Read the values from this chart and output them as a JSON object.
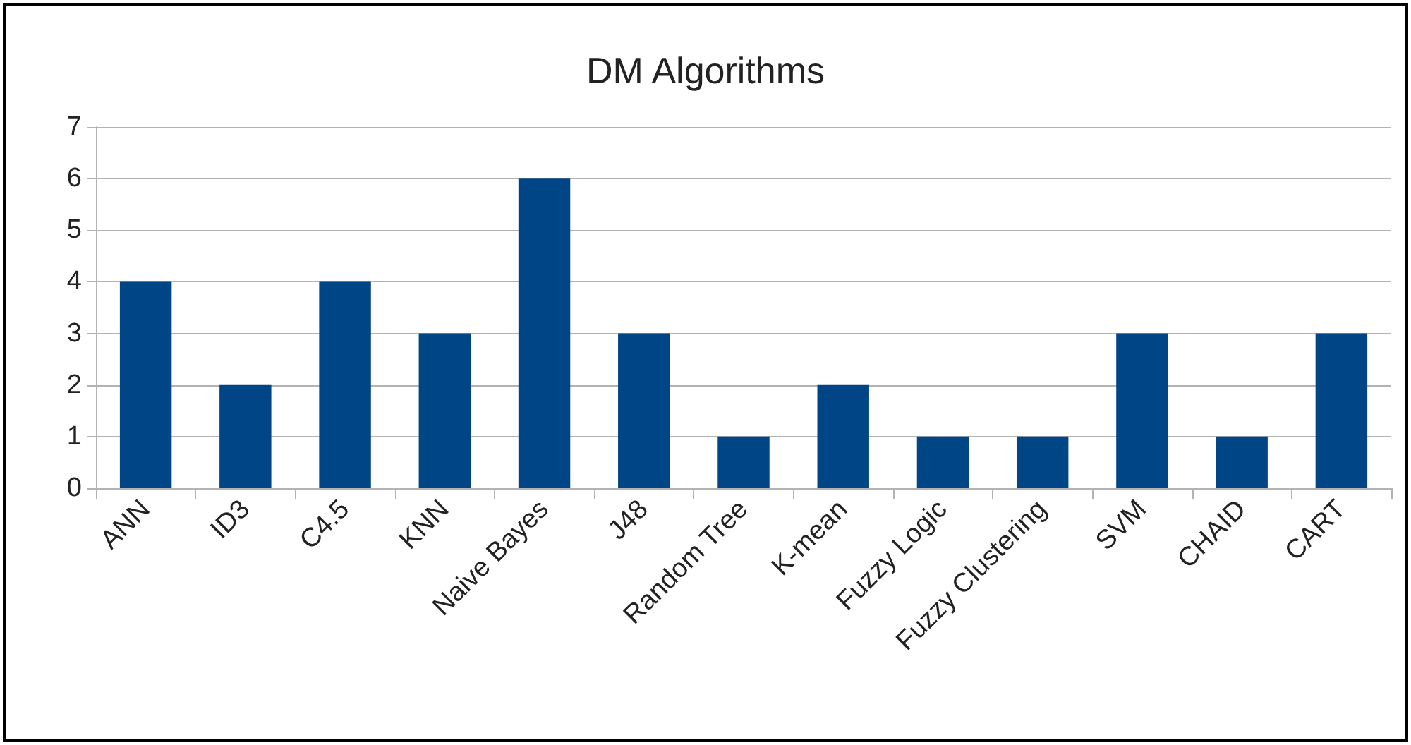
{
  "chart_data": {
    "type": "bar",
    "title": "DM Algorithms",
    "categories": [
      "ANN",
      "ID3",
      "C4.5",
      "KNN",
      "Naive Bayes",
      "J48",
      "Random Tree",
      "K-mean",
      "Fuzzy Logic",
      "Fuzzy Clustering",
      "SVM",
      "CHAID",
      "CART"
    ],
    "values": [
      4,
      2,
      4,
      3,
      6,
      3,
      1,
      2,
      1,
      1,
      3,
      1,
      3
    ],
    "color": "#004586",
    "ylim": [
      0,
      7
    ],
    "yticks": [
      0,
      1,
      2,
      3,
      4,
      5,
      6,
      7
    ],
    "grid": "y"
  }
}
